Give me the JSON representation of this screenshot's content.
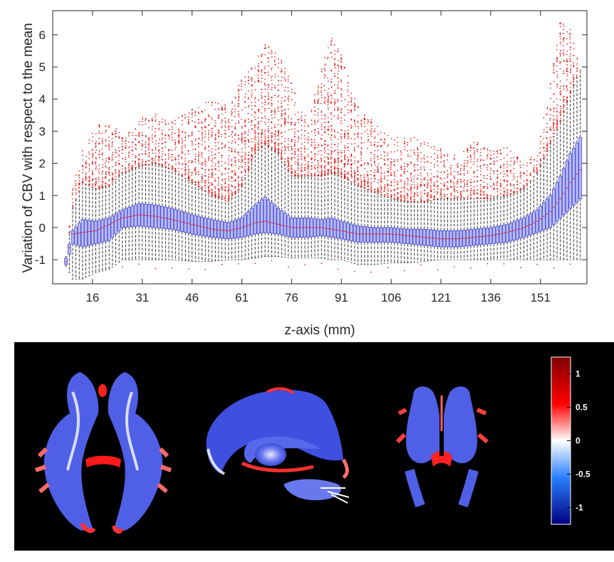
{
  "chart_data": {
    "type": "boxplot",
    "xlabel": "z-axis (mm)",
    "ylabel": "Variation of CBV with respect to the mean",
    "xticks": [
      16,
      31,
      46,
      61,
      76,
      91,
      106,
      121,
      136,
      151
    ],
    "yticks": [
      -1,
      0,
      1,
      2,
      3,
      4,
      5,
      6
    ],
    "xlim": [
      4,
      165
    ],
    "ylim": [
      -1.75,
      6.75
    ],
    "grid": false,
    "legend": "none",
    "colors": {
      "box": "#4a4ae0",
      "median": "#e03030",
      "whisker": "#222222",
      "outlier": "#ee0000"
    },
    "z_range": [
      8,
      163
    ],
    "profile_points": [
      {
        "z": 8,
        "median": -1.05,
        "q1": -1.15,
        "q3": -0.95,
        "lw": -1.2,
        "uw": -0.9,
        "out_max": -0.9
      },
      {
        "z": 10,
        "median": -0.2,
        "q1": -0.5,
        "q3": -0.1,
        "lw": -1.6,
        "uw": 0.6,
        "out_max": 1.3
      },
      {
        "z": 13,
        "median": -0.15,
        "q1": -0.6,
        "q3": 0.25,
        "lw": -1.6,
        "uw": 1.4,
        "out_max": 2.4
      },
      {
        "z": 17,
        "median": -0.1,
        "q1": -0.5,
        "q3": 0.2,
        "lw": -1.4,
        "uw": 1.2,
        "out_max": 3.2
      },
      {
        "z": 21,
        "median": 0.1,
        "q1": -0.4,
        "q3": 0.3,
        "lw": -1.3,
        "uw": 1.3,
        "out_max": 3.3
      },
      {
        "z": 25,
        "median": 0.3,
        "q1": 0.0,
        "q3": 0.55,
        "lw": -1.0,
        "uw": 1.7,
        "out_max": 2.9
      },
      {
        "z": 30,
        "median": 0.4,
        "q1": 0.05,
        "q3": 0.75,
        "lw": -1.0,
        "uw": 1.9,
        "out_max": 3.4
      },
      {
        "z": 35,
        "median": 0.35,
        "q1": 0.0,
        "q3": 0.7,
        "lw": -1.0,
        "uw": 2.0,
        "out_max": 3.6
      },
      {
        "z": 40,
        "median": 0.25,
        "q1": -0.05,
        "q3": 0.6,
        "lw": -1.0,
        "uw": 1.8,
        "out_max": 3.3
      },
      {
        "z": 46,
        "median": 0.1,
        "q1": -0.2,
        "q3": 0.4,
        "lw": -1.05,
        "uw": 1.4,
        "out_max": 3.7
      },
      {
        "z": 52,
        "median": -0.05,
        "q1": -0.3,
        "q3": 0.25,
        "lw": -1.05,
        "uw": 1.0,
        "out_max": 4.0
      },
      {
        "z": 57,
        "median": -0.1,
        "q1": -0.35,
        "q3": 0.15,
        "lw": -1.0,
        "uw": 0.8,
        "out_max": 3.8
      },
      {
        "z": 61,
        "median": 0.0,
        "q1": -0.3,
        "q3": 0.3,
        "lw": -1.0,
        "uw": 1.3,
        "out_max": 4.7
      },
      {
        "z": 65,
        "median": 0.15,
        "q1": -0.2,
        "q3": 0.7,
        "lw": -0.95,
        "uw": 2.3,
        "out_max": 5.2
      },
      {
        "z": 68,
        "median": 0.2,
        "q1": -0.15,
        "q3": 0.95,
        "lw": -0.9,
        "uw": 2.6,
        "out_max": 5.7
      },
      {
        "z": 72,
        "median": 0.1,
        "q1": -0.2,
        "q3": 0.6,
        "lw": -0.9,
        "uw": 2.3,
        "out_max": 5.5
      },
      {
        "z": 76,
        "median": 0.0,
        "q1": -0.3,
        "q3": 0.3,
        "lw": -0.95,
        "uw": 1.6,
        "out_max": 4.5
      },
      {
        "z": 81,
        "median": 0.0,
        "q1": -0.3,
        "q3": 0.3,
        "lw": -0.95,
        "uw": 1.6,
        "out_max": 3.3
      },
      {
        "z": 85,
        "median": 0.0,
        "q1": -0.25,
        "q3": 0.25,
        "lw": -0.95,
        "uw": 1.6,
        "out_max": 5.0
      },
      {
        "z": 88,
        "median": -0.05,
        "q1": -0.3,
        "q3": 0.3,
        "lw": -1.0,
        "uw": 1.7,
        "out_max": 5.9
      },
      {
        "z": 91,
        "median": -0.1,
        "q1": -0.35,
        "q3": 0.2,
        "lw": -1.0,
        "uw": 1.6,
        "out_max": 5.4
      },
      {
        "z": 96,
        "median": -0.2,
        "q1": -0.45,
        "q3": 0.05,
        "lw": -1.15,
        "uw": 1.3,
        "out_max": 3.8
      },
      {
        "z": 101,
        "median": -0.2,
        "q1": -0.45,
        "q3": 0.0,
        "lw": -1.15,
        "uw": 1.1,
        "out_max": 3.3
      },
      {
        "z": 106,
        "median": -0.2,
        "q1": -0.45,
        "q3": 0.0,
        "lw": -1.1,
        "uw": 0.9,
        "out_max": 2.8
      },
      {
        "z": 111,
        "median": -0.25,
        "q1": -0.5,
        "q3": -0.05,
        "lw": -1.1,
        "uw": 0.8,
        "out_max": 2.9
      },
      {
        "z": 116,
        "median": -0.3,
        "q1": -0.55,
        "q3": -0.05,
        "lw": -1.05,
        "uw": 0.8,
        "out_max": 2.7
      },
      {
        "z": 121,
        "median": -0.35,
        "q1": -0.6,
        "q3": -0.1,
        "lw": -1.0,
        "uw": 0.9,
        "out_max": 2.5
      },
      {
        "z": 126,
        "median": -0.35,
        "q1": -0.6,
        "q3": -0.1,
        "lw": -1.0,
        "uw": 0.9,
        "out_max": 2.2
      },
      {
        "z": 131,
        "median": -0.3,
        "q1": -0.55,
        "q3": -0.05,
        "lw": -1.0,
        "uw": 0.9,
        "out_max": 2.7
      },
      {
        "z": 136,
        "median": -0.25,
        "q1": -0.5,
        "q3": 0.0,
        "lw": -1.0,
        "uw": 0.9,
        "out_max": 2.4
      },
      {
        "z": 141,
        "median": -0.15,
        "q1": -0.45,
        "q3": 0.1,
        "lw": -1.0,
        "uw": 1.0,
        "out_max": 2.5
      },
      {
        "z": 146,
        "median": 0.0,
        "q1": -0.3,
        "q3": 0.3,
        "lw": -1.0,
        "uw": 1.2,
        "out_max": 2.0
      },
      {
        "z": 150,
        "median": 0.2,
        "q1": -0.15,
        "q3": 0.55,
        "lw": -1.0,
        "uw": 1.7,
        "out_max": 2.4
      },
      {
        "z": 154,
        "median": 0.5,
        "q1": 0.0,
        "q3": 1.0,
        "lw": -1.0,
        "uw": 2.6,
        "out_max": 4.5
      },
      {
        "z": 157,
        "median": 0.9,
        "q1": 0.3,
        "q3": 1.6,
        "lw": -1.0,
        "uw": 3.3,
        "out_max": 6.4
      },
      {
        "z": 160,
        "median": 1.4,
        "q1": 0.6,
        "q3": 2.3,
        "lw": -1.0,
        "uw": 4.2,
        "out_max": 6.2
      },
      {
        "z": 163,
        "median": 1.8,
        "q1": 0.9,
        "q3": 2.8,
        "lw": -1.0,
        "uw": 4.9,
        "out_max": 4.9
      }
    ]
  },
  "colorbar": {
    "ticks": [
      "1",
      "0.5",
      "0",
      "-0.5",
      "-1"
    ],
    "tick_values": [
      1,
      0.5,
      0,
      -0.5,
      -1
    ],
    "range": [
      -1.25,
      1.25
    ],
    "colors": [
      "#800000",
      "#ff0000",
      "#ffffff",
      "#2a7fff",
      "#000080"
    ]
  }
}
